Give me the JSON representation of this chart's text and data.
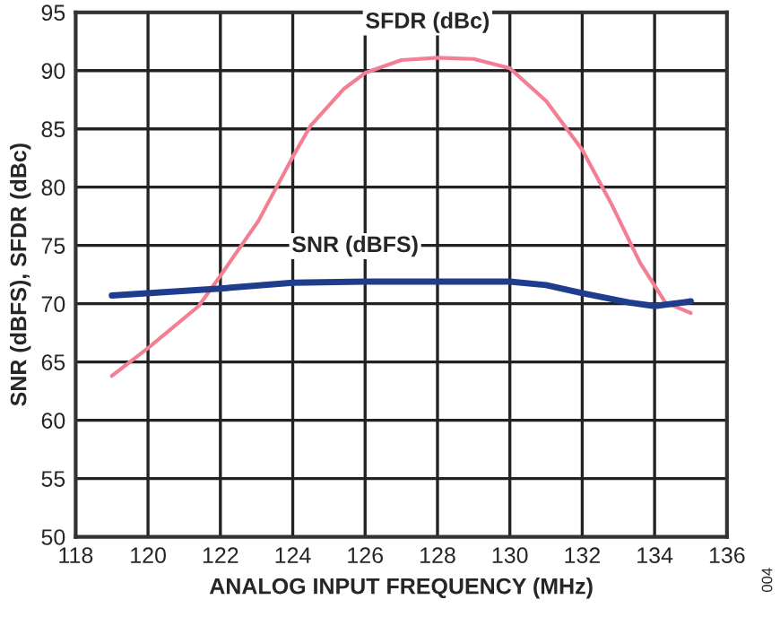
{
  "chart_data": {
    "type": "line",
    "xlabel": "ANALOG INPUT FREQUENCY (MHz)",
    "ylabel": "SNR (dBFS), SFDR (dBc)",
    "xlim": [
      118,
      136
    ],
    "xticks": [
      118,
      120,
      122,
      124,
      126,
      128,
      130,
      132,
      134,
      136
    ],
    "ylim": [
      50,
      95
    ],
    "yticks": [
      50,
      55,
      60,
      65,
      70,
      75,
      80,
      85,
      90,
      95
    ],
    "grid": true,
    "series": [
      {
        "name": "SFDR (dBc)",
        "color": "#f27f93",
        "x": [
          119,
          120,
          121.4,
          122,
          123.05,
          124,
          124.5,
          125.4,
          126,
          127,
          128,
          129,
          130,
          131,
          132,
          132.8,
          133.6,
          134.3,
          135
        ],
        "values": [
          63.8,
          66.2,
          69.8,
          72.4,
          77.1,
          82.6,
          85.3,
          88.4,
          89.8,
          90.9,
          91.1,
          91.0,
          90.2,
          87.4,
          83.2,
          78.6,
          73.5,
          70.1,
          69.2
        ]
      },
      {
        "name": "SNR (dBFS)",
        "color": "#1f3d8c",
        "x": [
          119,
          122,
          124,
          126,
          130,
          131,
          132,
          133.3,
          134,
          135
        ],
        "values": [
          70.7,
          71.3,
          71.8,
          71.9,
          71.9,
          71.6,
          70.9,
          70.1,
          69.8,
          70.2
        ]
      }
    ],
    "annotations": [
      "004"
    ]
  }
}
